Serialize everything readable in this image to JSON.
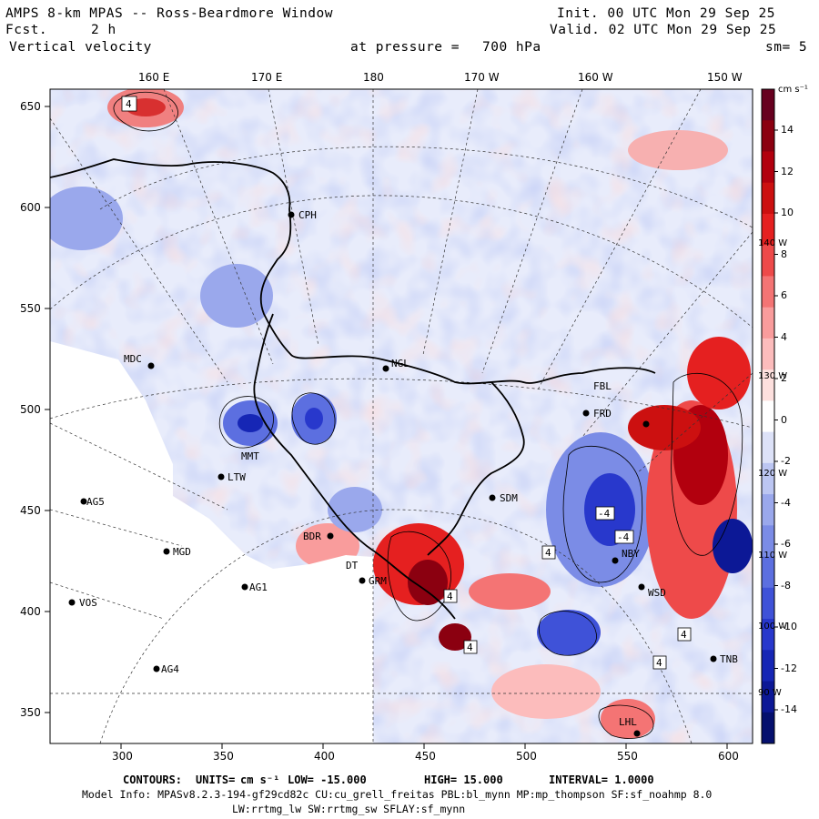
{
  "header": {
    "title": "AMPS 8-km MPAS -- Ross-Beardmore Window",
    "fcst_label": "Fcst.",
    "fcst_value": "2 h",
    "field": "Vertical velocity",
    "init": "Init. 00 UTC Mon 29 Sep 25",
    "valid": "Valid. 02 UTC Mon 29 Sep 25",
    "pressure_label": "at pressure =",
    "pressure_value": "700 hPa",
    "smoothing": "sm= 5"
  },
  "top_longitudes": [
    "160 E",
    "170 E",
    "180",
    "170 W",
    "160 W",
    "150 W"
  ],
  "right_longitudes": [
    "140 W",
    "130 W",
    "120 W",
    "110 W",
    "100 W",
    "90 W"
  ],
  "y_ticks": [
    "650",
    "600",
    "550",
    "500",
    "450",
    "400",
    "350"
  ],
  "x_ticks": [
    "300",
    "350",
    "400",
    "450",
    "500",
    "550",
    "600"
  ],
  "colorbar": {
    "units": "cm s⁻¹",
    "labels": [
      "14",
      "12",
      "10",
      "8",
      "6",
      "4",
      "2",
      "0",
      "-2",
      "-4",
      "-6",
      "-8",
      "-10",
      "-12",
      "-14"
    ],
    "colors_pos": [
      "#67001f",
      "#8b0010",
      "#b2000e",
      "#cc1010",
      "#e52020",
      "#ee4a4a",
      "#f47474",
      "#f99c9c",
      "#fcbcbc",
      "#fde0de"
    ],
    "colors_neg": [
      "#dde2f8",
      "#bcc6f2",
      "#9aa8ec",
      "#7b8ce6",
      "#5c6fe0",
      "#3f52d8",
      "#2838cc",
      "#1626b5",
      "#0c1896",
      "#05106e"
    ]
  },
  "stations": [
    {
      "id": "CPH"
    },
    {
      "id": "MDC"
    },
    {
      "id": "NGL"
    },
    {
      "id": "FBL"
    },
    {
      "id": "FRD"
    },
    {
      "id": "LTW"
    },
    {
      "id": "AG5"
    },
    {
      "id": "SDM"
    },
    {
      "id": "MGD"
    },
    {
      "id": "BDR"
    },
    {
      "id": "GRM"
    },
    {
      "id": "AG1"
    },
    {
      "id": "VOS"
    },
    {
      "id": "AG4"
    },
    {
      "id": "NBY"
    },
    {
      "id": "WSD"
    },
    {
      "id": "TNB"
    },
    {
      "id": "LHL"
    },
    {
      "id": "MMT"
    },
    {
      "id": "DT"
    }
  ],
  "contour_labels": [
    "4",
    "4",
    "-4",
    "4",
    "-4",
    "4",
    "4",
    "4"
  ],
  "footer": {
    "contours_label": "CONTOURS:",
    "units_label": "UNITS=",
    "units_value": "cm s⁻¹",
    "low": "LOW= -15.000",
    "high": "HIGH= 15.000",
    "interval": "INTERVAL= 1.0000",
    "model_info": "Model Info: MPASv8.2.3-194-gf29cd82c CU:cu_grell_freitas PBL:bl_mynn MP:mp_thompson SF:sf_noahmp 8.0",
    "model_info2": "LW:rrtmg_lw SW:rrtmg_sw SFLAY:sf_mynn"
  },
  "map": {
    "land_color": "#ffffff",
    "field_base_color": "#e8ecfb",
    "contour_color": "#000000",
    "coast_color": "#000000"
  }
}
